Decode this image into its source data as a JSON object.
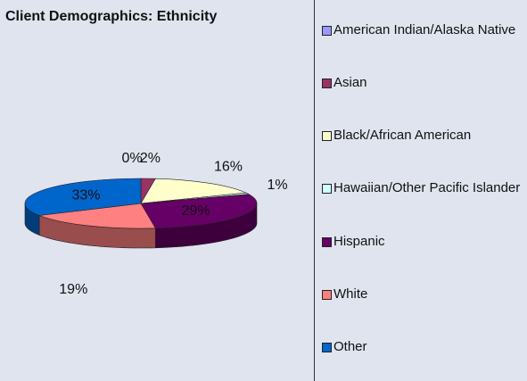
{
  "chart_data": {
    "type": "pie3d",
    "title": "Client Demographics: Ethnicity",
    "categories": [
      "American Indian/Alaska Native",
      "Asian",
      "Black/African American",
      "Hawaiian/Other Pacific Islander",
      "Hispanic",
      "White",
      "Other"
    ],
    "values": [
      0,
      2,
      16,
      1,
      29,
      19,
      33
    ],
    "value_labels": [
      "0%",
      "2%",
      "16%",
      "1%",
      "29%",
      "19%",
      "33%"
    ],
    "colors": [
      "#9999ff",
      "#993366",
      "#ffffcc",
      "#ccffff",
      "#660066",
      "#ff8080",
      "#0066cc"
    ]
  }
}
